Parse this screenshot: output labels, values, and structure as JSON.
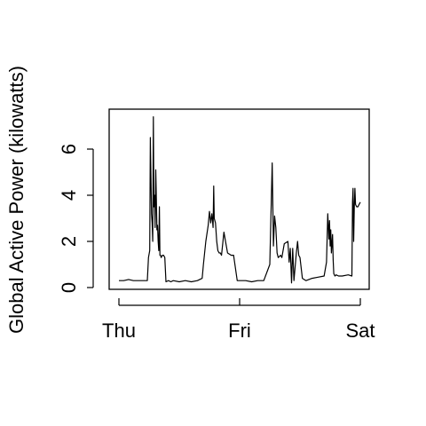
{
  "chart_data": {
    "type": "line",
    "title": "",
    "xlabel": "",
    "ylabel": "Global Active Power (kilowatts)",
    "x_unit": "days since Thursday 00:00",
    "xlim": [
      0,
      2
    ],
    "ylim": [
      0,
      7.5
    ],
    "x_ticks": [
      {
        "value": 0,
        "label": "Thu"
      },
      {
        "value": 1,
        "label": "Fri"
      },
      {
        "value": 2,
        "label": "Sat"
      }
    ],
    "y_ticks": [
      0,
      2,
      4,
      6
    ],
    "grid": false,
    "legend": "none",
    "color": "#000000",
    "series": [
      {
        "x": [
          0.0,
          0.04,
          0.08,
          0.12,
          0.15,
          0.2,
          0.235,
          0.245,
          0.255,
          0.26,
          0.27,
          0.275,
          0.28,
          0.285,
          0.29,
          0.295,
          0.3,
          0.305,
          0.31,
          0.315,
          0.32,
          0.325,
          0.33,
          0.335,
          0.34,
          0.345,
          0.35,
          0.36,
          0.37,
          0.38,
          0.39,
          0.41,
          0.43,
          0.45,
          0.5,
          0.55,
          0.6,
          0.65,
          0.69,
          0.7,
          0.72,
          0.74,
          0.75,
          0.76,
          0.77,
          0.78,
          0.785,
          0.79,
          0.8,
          0.81,
          0.82,
          0.83,
          0.84,
          0.85,
          0.87,
          0.9,
          0.93,
          0.95,
          0.98,
          1.0,
          1.05,
          1.1,
          1.15,
          1.2,
          1.25,
          1.27,
          1.28,
          1.285,
          1.29,
          1.3,
          1.31,
          1.32,
          1.33,
          1.34,
          1.35,
          1.37,
          1.4,
          1.41,
          1.42,
          1.43,
          1.44,
          1.45,
          1.47,
          1.48,
          1.49,
          1.5,
          1.52,
          1.55,
          1.6,
          1.65,
          1.7,
          1.72,
          1.73,
          1.74,
          1.745,
          1.75,
          1.755,
          1.76,
          1.77,
          1.775,
          1.78,
          1.79,
          1.8,
          1.82,
          1.85,
          1.9,
          1.93,
          1.935,
          1.94,
          1.945,
          1.95,
          1.955,
          1.96,
          1.97,
          1.98,
          1.99,
          2.0
        ],
        "y": [
          0.3,
          0.3,
          0.35,
          0.3,
          0.3,
          0.3,
          0.3,
          1.3,
          1.6,
          6.5,
          3.2,
          2.8,
          2.0,
          7.4,
          3.5,
          4.0,
          2.6,
          5.1,
          3.8,
          2.5,
          2.7,
          2.0,
          1.6,
          3.5,
          1.4,
          1.4,
          1.3,
          1.4,
          1.4,
          1.3,
          0.25,
          0.3,
          0.25,
          0.3,
          0.25,
          0.3,
          0.25,
          0.3,
          0.4,
          1.0,
          2.0,
          2.7,
          3.3,
          2.8,
          3.2,
          2.6,
          4.4,
          3.0,
          2.8,
          2.0,
          1.6,
          1.5,
          1.5,
          1.4,
          2.4,
          1.5,
          1.4,
          1.4,
          0.3,
          0.3,
          0.3,
          0.25,
          0.3,
          0.3,
          1.0,
          5.4,
          1.8,
          2.5,
          3.1,
          2.6,
          1.5,
          1.3,
          1.35,
          1.4,
          1.3,
          1.9,
          2.0,
          1.1,
          1.7,
          0.2,
          1.7,
          0.3,
          1.5,
          2.0,
          1.4,
          1.3,
          0.4,
          0.3,
          0.4,
          0.45,
          0.5,
          1.1,
          3.2,
          2.1,
          2.9,
          1.8,
          2.5,
          1.5,
          2.3,
          1.2,
          0.6,
          0.5,
          0.55,
          0.5,
          0.5,
          0.55,
          0.5,
          3.7,
          4.3,
          2.0,
          3.5,
          4.3,
          3.6,
          3.5,
          3.5,
          3.6,
          3.7
        ]
      }
    ]
  }
}
